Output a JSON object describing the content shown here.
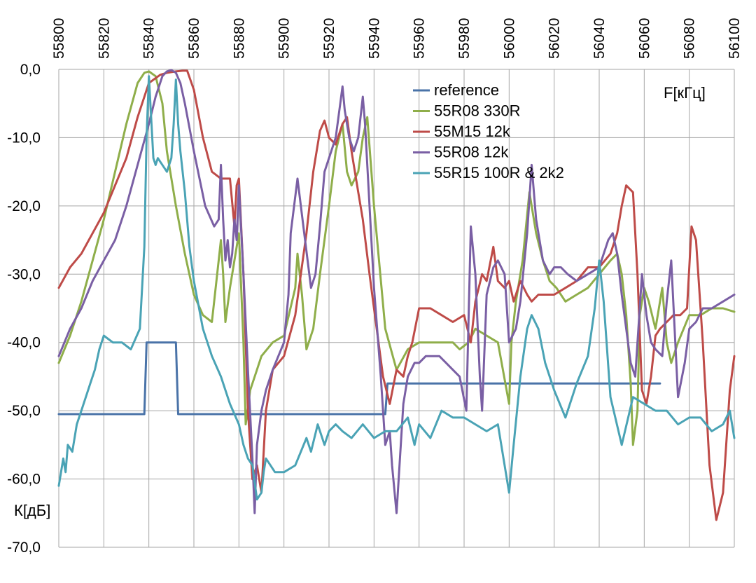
{
  "chart_data": {
    "type": "line",
    "title": "",
    "xlabel": "F[кГц]",
    "ylabel": "К[дБ]",
    "xlim": [
      55800,
      56100
    ],
    "ylim": [
      -70,
      0
    ],
    "x_ticks": [
      55800,
      55820,
      55840,
      55860,
      55880,
      55900,
      55920,
      55940,
      55960,
      55980,
      56000,
      56020,
      56040,
      56060,
      56080,
      56100
    ],
    "y_ticks": [
      0,
      -10,
      -20,
      -30,
      -40,
      -50,
      -60,
      -70
    ],
    "y_tick_labels": [
      "0,0",
      "-10,0",
      "-20,0",
      "-30,0",
      "-40,0",
      "-50,0",
      "-60,0",
      "-70,0"
    ],
    "grid": true,
    "legend_position": "top-right",
    "series": [
      {
        "name": "reference",
        "color": "#4a73a8",
        "x": [
          55800,
          55838,
          55839,
          55852,
          55853,
          55945,
          55946,
          56067
        ],
        "y": [
          -50.5,
          -50.5,
          -40,
          -40,
          -50.5,
          -50.5,
          -46,
          -46
        ]
      },
      {
        "name": "55R08 330R",
        "color": "#8fae4a",
        "x": [
          55800,
          55805,
          55810,
          55815,
          55820,
          55825,
          55830,
          55835,
          55838,
          55840,
          55843,
          55846,
          55848,
          55852,
          55856,
          55860,
          55864,
          55868,
          55871,
          55872,
          55873,
          55874,
          55876,
          55878,
          55880,
          55882,
          55883,
          55885,
          55888,
          55890,
          55895,
          55900,
          55905,
          55906,
          55908,
          55910,
          55913,
          55916,
          55920,
          55923,
          55926,
          55928,
          55930,
          55933,
          55935,
          55937,
          55940,
          55945,
          55950,
          55955,
          55960,
          55965,
          55970,
          55975,
          55978,
          55982,
          55985,
          55990,
          55995,
          56000,
          56001,
          56003,
          56006,
          56009,
          56012,
          56015,
          56018,
          56021,
          56025,
          56030,
          56035,
          56040,
          56045,
          56048,
          56050,
          56052,
          56054,
          56055,
          56057,
          56058,
          56060,
          56062,
          56065,
          56068,
          56070,
          56072,
          56075,
          56080,
          56085,
          56090,
          56095,
          56100
        ],
        "y": [
          -43,
          -39,
          -34,
          -28,
          -22,
          -15,
          -8,
          -2,
          -0.5,
          -0.3,
          -1,
          -5,
          -12,
          -20,
          -27,
          -33,
          -36,
          -37,
          -28,
          -25,
          -30,
          -37,
          -32,
          -28,
          -24,
          -40,
          -52,
          -47,
          -44,
          -42,
          -40,
          -39,
          -32,
          -27,
          -33,
          -41,
          -38,
          -30,
          -20,
          -12,
          -8,
          -15,
          -17,
          -15,
          -10,
          -7,
          -20,
          -38,
          -44,
          -41,
          -40,
          -40,
          -40,
          -40,
          -41,
          -40,
          -38,
          -39,
          -40,
          -49,
          -40,
          -34,
          -28,
          -18,
          -24,
          -28,
          -31,
          -32,
          -34,
          -33,
          -32,
          -30,
          -28,
          -27,
          -30,
          -36,
          -46,
          -55,
          -50,
          -36,
          -32,
          -34,
          -38,
          -32,
          -40,
          -43,
          -40,
          -36,
          -36,
          -35,
          -35,
          -35.5
        ]
      },
      {
        "name": "55M15 12k",
        "color": "#be4b48",
        "x": [
          55800,
          55805,
          55810,
          55815,
          55820,
          55825,
          55830,
          55835,
          55840,
          55845,
          55848,
          55852,
          55855,
          55857,
          55860,
          55864,
          55868,
          55872,
          55876,
          55878,
          55879,
          55880,
          55882,
          55884,
          55886,
          55888,
          55890,
          55892,
          55895,
          55900,
          55905,
          55910,
          55913,
          55916,
          55918,
          55920,
          55923,
          55926,
          55928,
          55930,
          55933,
          55935,
          55938,
          55940,
          55944,
          55947,
          55950,
          55953,
          55955,
          55957,
          55960,
          55965,
          55970,
          55975,
          55980,
          55983,
          55985,
          55988,
          55990,
          55993,
          55995,
          55998,
          56000,
          56002,
          56005,
          56008,
          56010,
          56013,
          56016,
          56020,
          56025,
          56030,
          56035,
          56040,
          56045,
          56048,
          56050,
          56052,
          56055,
          56057,
          56059,
          56061,
          56063,
          56065,
          56067,
          56070,
          56073,
          56076,
          56079,
          56081,
          56083,
          56086,
          56089,
          56092,
          56095,
          56098,
          56100
        ],
        "y": [
          -32,
          -29,
          -27,
          -24,
          -21,
          -17,
          -13,
          -7,
          -2,
          -0.8,
          -0.5,
          -0.3,
          -0.2,
          -0.2,
          -3,
          -10,
          -15,
          -16,
          -16,
          -23,
          -17,
          -16,
          -30,
          -50,
          -60,
          -58,
          -62,
          -50,
          -44,
          -42,
          -36,
          -24,
          -15,
          -9,
          -7.5,
          -10,
          -11,
          -8,
          -7,
          -12,
          -18,
          -22,
          -30,
          -35,
          -45,
          -49,
          -44,
          -45,
          -42,
          -40,
          -35,
          -35,
          -36,
          -37,
          -36,
          -40,
          -34,
          -30,
          -31,
          -26,
          -31,
          -32,
          -31,
          -34,
          -31,
          -33,
          -34,
          -33,
          -33,
          -33,
          -32,
          -31,
          -29,
          -29,
          -27,
          -24,
          -20,
          -17,
          -18,
          -30,
          -47,
          -49,
          -45,
          -39,
          -38,
          -37,
          -36,
          -36,
          -35,
          -23,
          -25,
          -40,
          -58,
          -66,
          -62,
          -47,
          -42
        ]
      },
      {
        "name": "55R08 12k",
        "color": "#7a5fa4",
        "x": [
          55800,
          55805,
          55810,
          55815,
          55820,
          55825,
          55830,
          55835,
          55840,
          55843,
          55846,
          55848,
          55850,
          55852,
          55854,
          55856,
          55860,
          55865,
          55869,
          55871,
          55872,
          55873,
          55874,
          55875,
          55876,
          55877,
          55878,
          55879,
          55880,
          55882,
          55884,
          55886,
          55887,
          55888,
          55890,
          55892,
          55895,
          55900,
          55902,
          55903,
          55906,
          55909,
          55912,
          55914,
          55916,
          55918,
          55921,
          55923,
          55925,
          55926,
          55927,
          55929,
          55931,
          55933,
          55935,
          55936,
          55938,
          55940,
          55943,
          55945,
          55947,
          55948,
          55950,
          55953,
          55955,
          55958,
          55960,
          55963,
          55966,
          55969,
          55972,
          55975,
          55978,
          55981,
          55983,
          55985,
          55987,
          55988,
          55990,
          55993,
          55995,
          55998,
          56000,
          56003,
          56005,
          56008,
          56010,
          56012,
          56015,
          56018,
          56020,
          56023,
          56026,
          56030,
          56035,
          56040,
          56044,
          56046,
          56048,
          56050,
          56052,
          56054,
          56056,
          56059,
          56061,
          56063,
          56065,
          56068,
          56070,
          56072,
          56075,
          56078,
          56080,
          56083,
          56086,
          56090,
          56095,
          56100
        ],
        "y": [
          -42,
          -38,
          -35,
          -31,
          -28,
          -25,
          -20,
          -14,
          -8,
          -4,
          -1,
          -0.3,
          -0.1,
          -0.5,
          -2,
          -5,
          -12,
          -20,
          -23,
          -22,
          -14,
          -22,
          -28,
          -25,
          -29,
          -27,
          -22,
          -25,
          -17,
          -30,
          -44,
          -57,
          -65,
          -55,
          -50,
          -47,
          -44,
          -40,
          -33,
          -24,
          -16,
          -24,
          -32,
          -30,
          -23,
          -15,
          -12,
          -10,
          -5,
          -2.5,
          -6,
          -10,
          -12,
          -10,
          -4,
          -8,
          -20,
          -32,
          -45,
          -55,
          -53,
          -58,
          -65,
          -49,
          -45,
          -43,
          -43,
          -42,
          -42,
          -42,
          -43,
          -44,
          -45,
          -50,
          -23,
          -30,
          -45,
          -50,
          -33,
          -29,
          -28,
          -30,
          -40,
          -38,
          -34,
          -24,
          -14,
          -22,
          -28,
          -30,
          -29,
          -29,
          -30,
          -31,
          -30,
          -29,
          -25,
          -24,
          -27,
          -33,
          -38,
          -43,
          -45,
          -30,
          -36,
          -40,
          -41,
          -42,
          -34,
          -28,
          -48,
          -43,
          -38,
          -37,
          -35,
          -35,
          -34,
          -33
        ]
      },
      {
        "name": "55R15 100R & 2k2",
        "color": "#4aa3b5",
        "x": [
          55800,
          55802,
          55803,
          55804,
          55806,
          55808,
          55810,
          55812,
          55814,
          55816,
          55818,
          55820,
          55824,
          55828,
          55832,
          55836,
          55838,
          55839,
          55840,
          55841,
          55842,
          55843,
          55844,
          55846,
          55848,
          55850,
          55851,
          55852,
          55853,
          55854,
          55856,
          55858,
          55860,
          55864,
          55868,
          55872,
          55876,
          55880,
          55882,
          55884,
          55886,
          55888,
          55890,
          55891,
          55892,
          55894,
          55896,
          55898,
          55900,
          55905,
          55910,
          55912,
          55915,
          55918,
          55920,
          55923,
          55926,
          55930,
          55935,
          55940,
          55945,
          55950,
          55955,
          55958,
          55960,
          55965,
          55970,
          55975,
          55980,
          55985,
          55990,
          55995,
          56000,
          56002,
          56005,
          56008,
          56010,
          56013,
          56016,
          56020,
          56025,
          56030,
          56035,
          56038,
          56040,
          56042,
          56045,
          56050,
          56055,
          56060,
          56065,
          56070,
          56075,
          56080,
          56085,
          56090,
          56095,
          56098,
          56100
        ],
        "y": [
          -61,
          -57,
          -59,
          -55,
          -56,
          -52,
          -50,
          -48,
          -46,
          -44,
          -41,
          -39,
          -40,
          -40,
          -41,
          -38,
          -26,
          -10,
          -1,
          -7,
          -13,
          -14,
          -13,
          -14,
          -15,
          -13,
          -8,
          -1.5,
          -8,
          -12,
          -18,
          -26,
          -31,
          -38,
          -42,
          -45,
          -49,
          -52,
          -55,
          -57,
          -58,
          -63,
          -62,
          -59,
          -57,
          -58,
          -59,
          -59,
          -59,
          -58,
          -54,
          -56,
          -52,
          -55,
          -53,
          -52,
          -53,
          -54,
          -52,
          -54,
          -53,
          -53,
          -51,
          -55,
          -52,
          -54,
          -50,
          -51,
          -51,
          -52,
          -53,
          -52,
          -62,
          -55,
          -45,
          -38,
          -36,
          -38,
          -43,
          -47,
          -51,
          -46,
          -42,
          -35,
          -28,
          -34,
          -48,
          -55,
          -48,
          -49,
          -50,
          -50,
          -52,
          -51,
          -51,
          -53,
          -52,
          -50,
          -54
        ]
      }
    ]
  }
}
